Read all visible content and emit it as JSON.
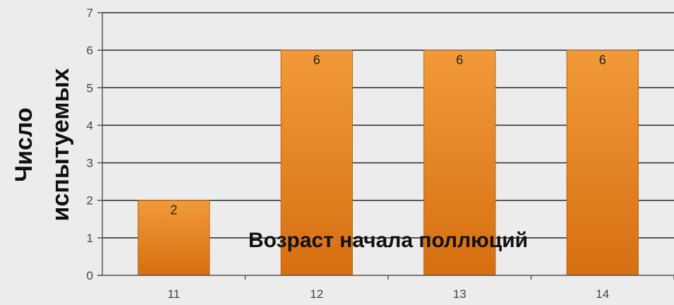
{
  "chart_data": {
    "type": "bar",
    "categories": [
      "11",
      "12",
      "13",
      "14"
    ],
    "values": [
      2,
      6,
      6,
      6
    ],
    "ylabel_lines": [
      "Число",
      "испытуемых"
    ],
    "xlabel": "Возраст начала поллюций",
    "ylim": [
      0,
      7
    ],
    "yticks": [
      "0",
      "1",
      "2",
      "3",
      "4",
      "5",
      "6",
      "7"
    ],
    "grid": true,
    "data_labels": true,
    "bar_color": "#e88a2a"
  }
}
